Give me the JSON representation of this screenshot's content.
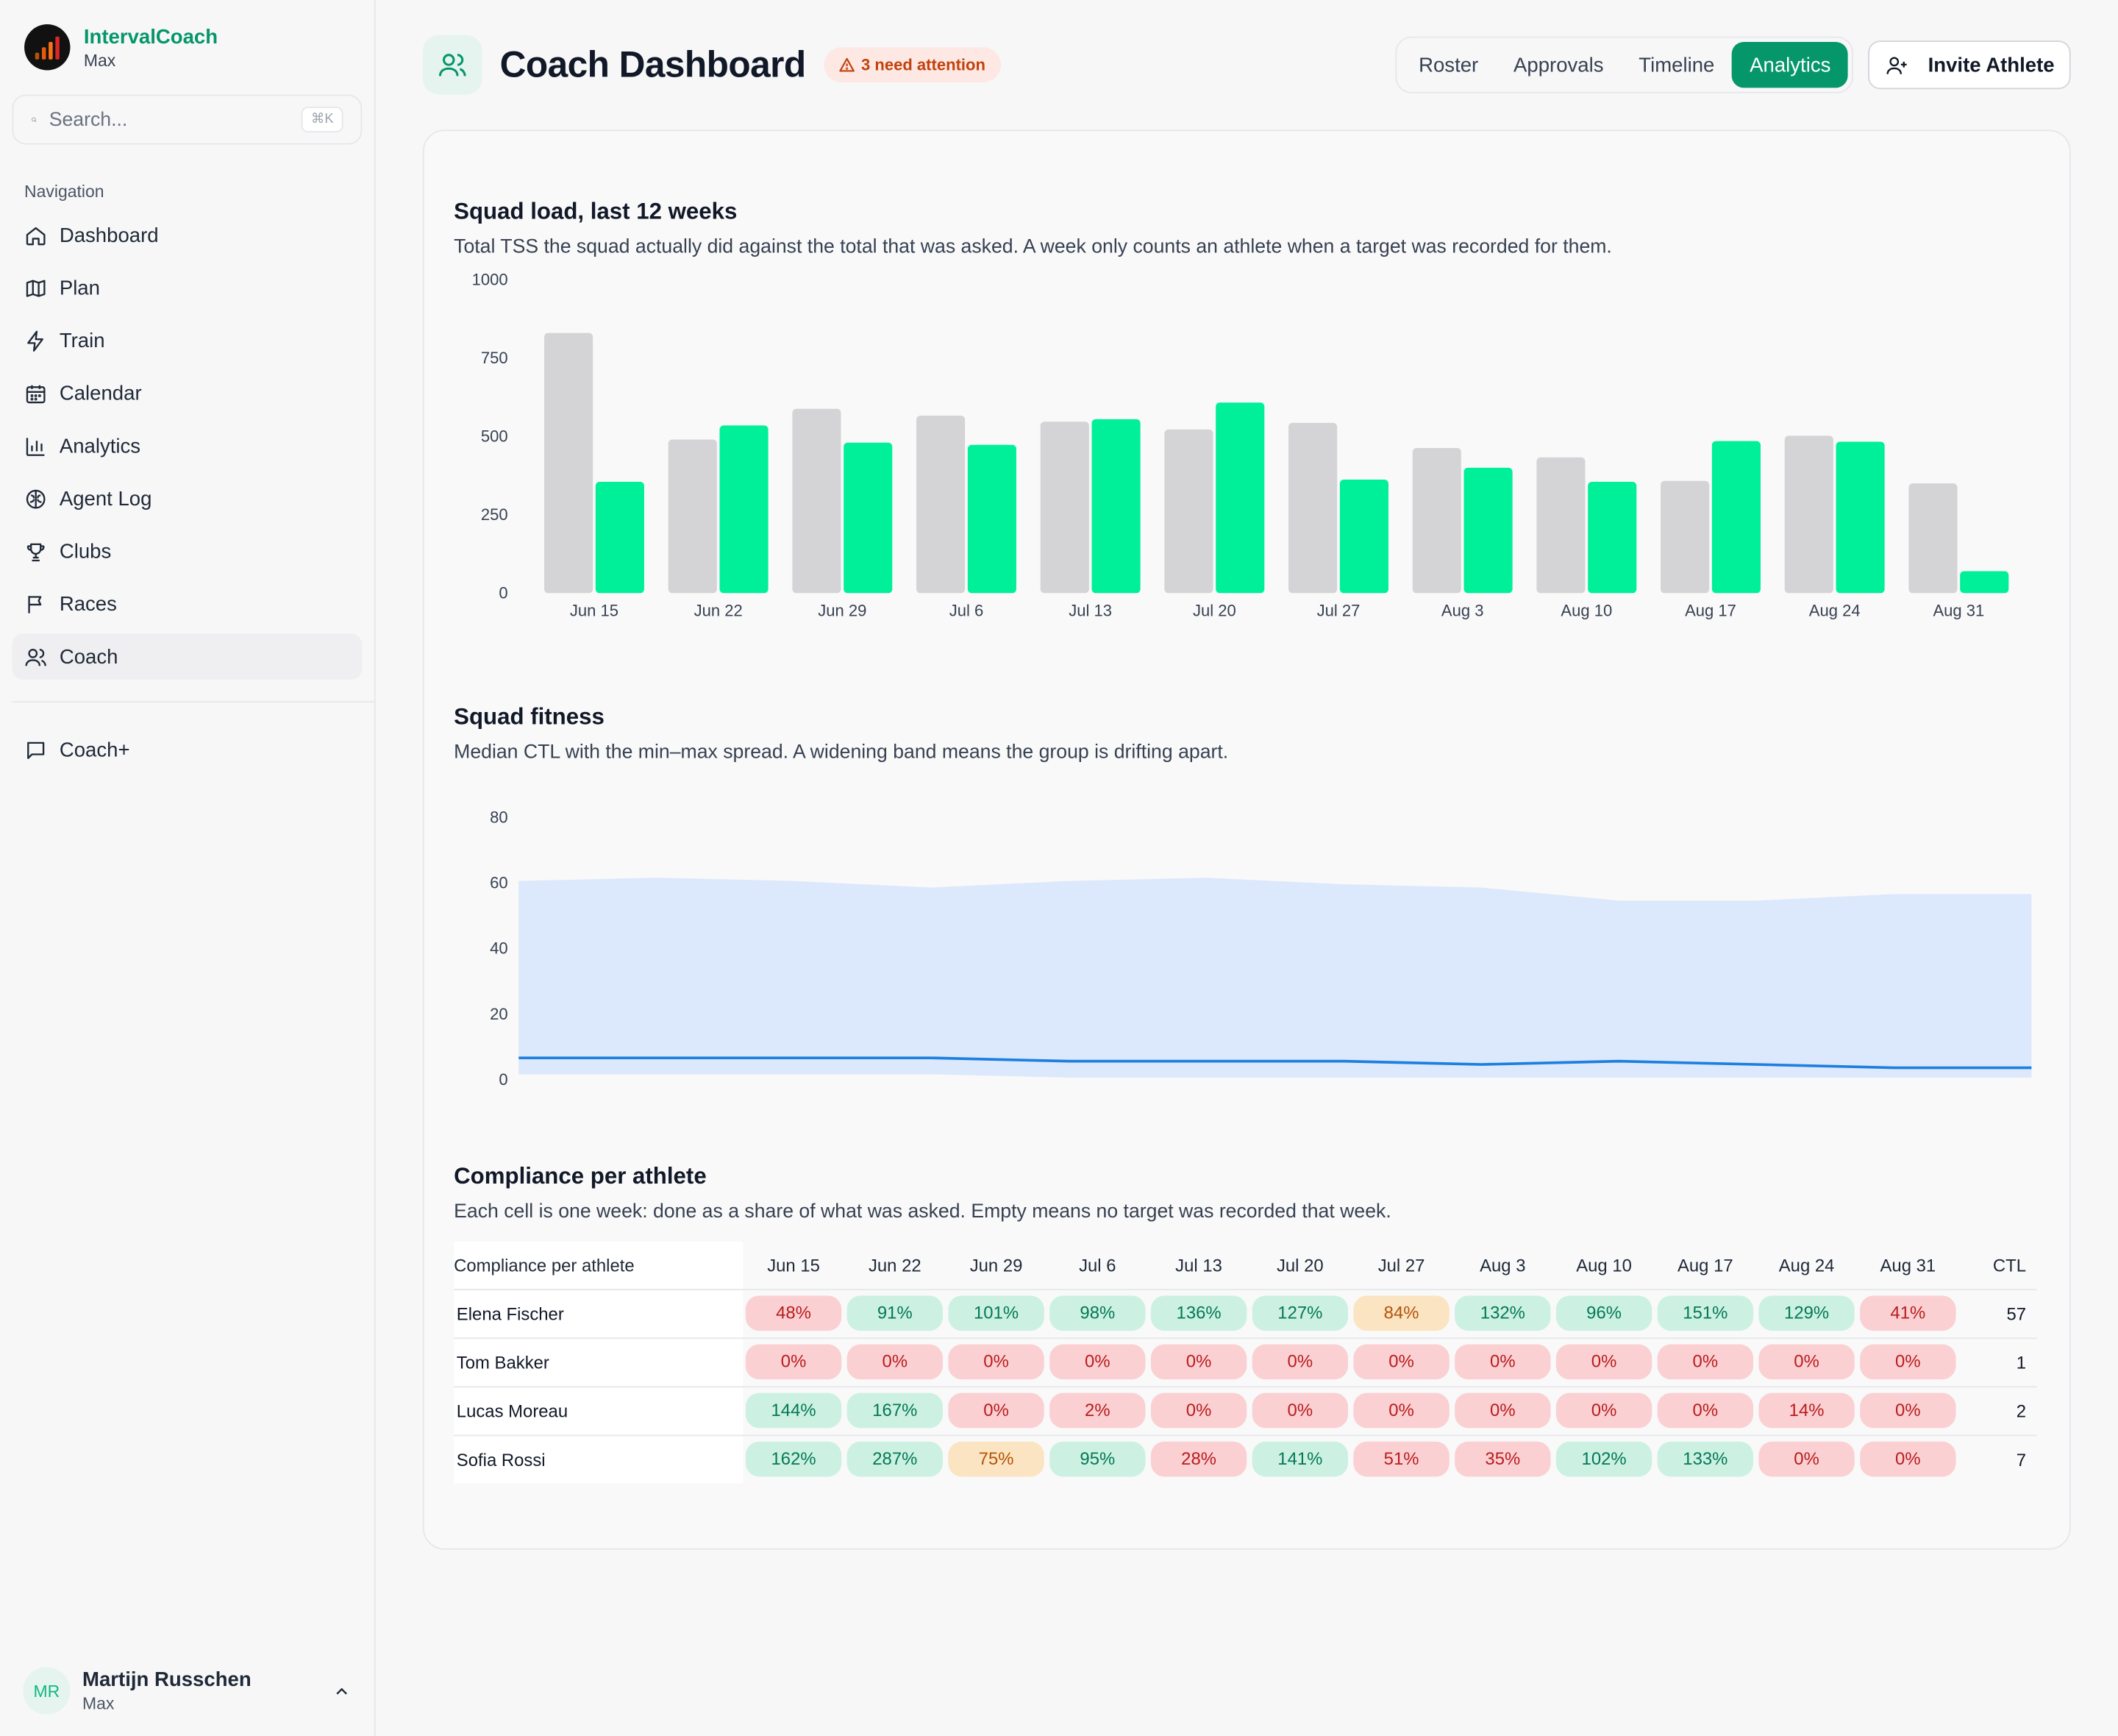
{
  "brand": {
    "name": "IntervalCoach",
    "sub": "Max"
  },
  "search": {
    "placeholder": "Search...",
    "shortcut": "⌘K"
  },
  "nav": {
    "heading": "Navigation",
    "items": [
      {
        "label": "Dashboard",
        "icon": "home-icon"
      },
      {
        "label": "Plan",
        "icon": "map-icon"
      },
      {
        "label": "Train",
        "icon": "lightning-icon"
      },
      {
        "label": "Calendar",
        "icon": "calendar-icon"
      },
      {
        "label": "Analytics",
        "icon": "bar-chart-icon"
      },
      {
        "label": "Agent Log",
        "icon": "brain-icon"
      },
      {
        "label": "Clubs",
        "icon": "trophy-icon"
      },
      {
        "label": "Races",
        "icon": "flag-icon"
      },
      {
        "label": "Coach",
        "icon": "users-icon",
        "active": true
      }
    ],
    "extra": {
      "label": "Coach+",
      "icon": "message-icon"
    }
  },
  "user": {
    "initials": "MR",
    "name": "Martijn Russchen",
    "sub": "Max"
  },
  "header": {
    "title": "Coach Dashboard",
    "badge": "3 need attention",
    "tabs": [
      {
        "label": "Roster"
      },
      {
        "label": "Approvals"
      },
      {
        "label": "Timeline"
      },
      {
        "label": "Analytics",
        "active": true
      }
    ],
    "invite_label": "Invite Athlete"
  },
  "colors": {
    "accent": "#059669",
    "done_bar": "#00f09a",
    "target_bar": "#d4d4d6",
    "band": "#dce8fb",
    "median_line": "#1d7fe0"
  },
  "sections": {
    "load": {
      "title": "Squad load, last 12 weeks",
      "desc": "Total TSS the squad actually did against the total that was asked. A week only counts an athlete when a target was recorded for them."
    },
    "fitness": {
      "title": "Squad fitness",
      "desc": "Median CTL with the min–max spread. A widening band means the group is drifting apart."
    },
    "compliance": {
      "title": "Compliance per athlete",
      "desc": "Each cell is one week: done as a share of what was asked. Empty means no target was recorded that week."
    }
  },
  "chart_data": [
    {
      "type": "bar",
      "title": "Squad load, last 12 weeks",
      "categories": [
        "Jun 15",
        "Jun 22",
        "Jun 29",
        "Jul 6",
        "Jul 13",
        "Jul 20",
        "Jul 27",
        "Aug 3",
        "Aug 10",
        "Aug 17",
        "Aug 24",
        "Aug 31"
      ],
      "series": [
        {
          "values": [
            830,
            490,
            588,
            566,
            547,
            522,
            543,
            463,
            433,
            358,
            502,
            350
          ],
          "color": "#d4d4d6"
        },
        {
          "values": [
            355,
            535,
            480,
            473,
            555,
            608,
            362,
            400,
            355,
            485,
            483,
            70
          ],
          "color": "#00f09a"
        }
      ],
      "yticks": [
        0,
        250,
        500,
        750,
        1000
      ],
      "ylim": [
        0,
        1000
      ],
      "legend": "none"
    },
    {
      "type": "area",
      "title": "Squad fitness",
      "x": [
        "Jun 15",
        "Jun 22",
        "Jun 29",
        "Jul 6",
        "Jul 13",
        "Jul 20",
        "Jul 27",
        "Aug 3",
        "Aug 10",
        "Aug 17",
        "Aug 24",
        "Aug 31"
      ],
      "series": [
        {
          "values": [
            7,
            7,
            7,
            7,
            6,
            6,
            6,
            5,
            6,
            5,
            4,
            4
          ],
          "kind": "line",
          "color": "#1d7fe0"
        },
        {
          "values": [
            61,
            62,
            61,
            59,
            61,
            62,
            60,
            59,
            55,
            55,
            57,
            57
          ],
          "kind": "band-max",
          "color": "#dce8fb"
        },
        {
          "values": [
            2,
            2,
            2,
            2,
            1,
            1,
            1,
            1,
            1,
            1,
            1,
            1
          ],
          "kind": "band-min",
          "color": "#dce8fb"
        }
      ],
      "yticks": [
        0,
        20,
        40,
        60,
        80
      ],
      "ylim": [
        0,
        80
      ],
      "legend": "none"
    },
    {
      "type": "table",
      "title": "Compliance per athlete",
      "columns": [
        "Compliance per athlete",
        "Jun 15",
        "Jun 22",
        "Jun 29",
        "Jul 6",
        "Jul 13",
        "Jul 20",
        "Jul 27",
        "Aug 3",
        "Aug 10",
        "Aug 17",
        "Aug 24",
        "Aug 31",
        "CTL"
      ],
      "rows": [
        {
          "name": "Elena Fischer",
          "values": [
            "48%",
            "91%",
            "101%",
            "98%",
            "136%",
            "127%",
            "84%",
            "132%",
            "96%",
            "151%",
            "129%",
            "41%"
          ],
          "ctl": "57"
        },
        {
          "name": "Tom Bakker",
          "values": [
            "0%",
            "0%",
            "0%",
            "0%",
            "0%",
            "0%",
            "0%",
            "0%",
            "0%",
            "0%",
            "0%",
            "0%"
          ],
          "ctl": "1"
        },
        {
          "name": "Lucas Moreau",
          "values": [
            "144%",
            "167%",
            "0%",
            "2%",
            "0%",
            "0%",
            "0%",
            "0%",
            "0%",
            "0%",
            "14%",
            "0%"
          ],
          "ctl": "2"
        },
        {
          "name": "Sofia Rossi",
          "values": [
            "162%",
            "287%",
            "75%",
            "95%",
            "28%",
            "141%",
            "51%",
            "35%",
            "102%",
            "133%",
            "0%",
            "0%"
          ],
          "ctl": "7"
        }
      ]
    }
  ]
}
